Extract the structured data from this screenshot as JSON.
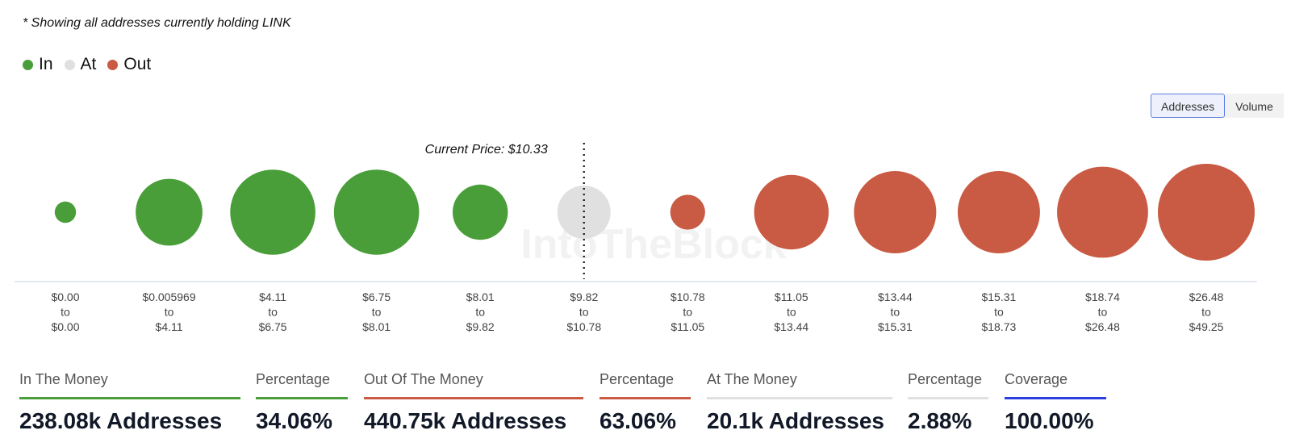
{
  "note": "* Showing all addresses currently holding LINK",
  "legend": [
    {
      "label": "In",
      "color": "#4a9e3a"
    },
    {
      "label": "At",
      "color": "#e0e0e0"
    },
    {
      "label": "Out",
      "color": "#c95a43"
    }
  ],
  "toggle": {
    "addresses_label": "Addresses",
    "volume_label": "Volume",
    "selected": "Addresses"
  },
  "watermark": "IntoTheBlock",
  "chart_data": {
    "type": "bubble",
    "measure": "Addresses",
    "current_price_label": "Current Price: $10.33",
    "current_price": 10.33,
    "bubbles": [
      {
        "from": "$0.00",
        "to": "$0.00",
        "status": "In",
        "relative_size": 0.22
      },
      {
        "from": "$0.005969",
        "to": "$4.11",
        "status": "In",
        "relative_size": 0.69
      },
      {
        "from": "$4.11",
        "to": "$6.75",
        "status": "In",
        "relative_size": 0.88
      },
      {
        "from": "$6.75",
        "to": "$8.01",
        "status": "In",
        "relative_size": 0.88
      },
      {
        "from": "$8.01",
        "to": "$9.82",
        "status": "In",
        "relative_size": 0.57
      },
      {
        "from": "$9.82",
        "to": "$10.78",
        "status": "At",
        "relative_size": 0.55
      },
      {
        "from": "$10.78",
        "to": "$11.05",
        "status": "Out",
        "relative_size": 0.36
      },
      {
        "from": "$11.05",
        "to": "$13.44",
        "status": "Out",
        "relative_size": 0.77
      },
      {
        "from": "$13.44",
        "to": "$15.31",
        "status": "Out",
        "relative_size": 0.85
      },
      {
        "from": "$15.31",
        "to": "$18.73",
        "status": "Out",
        "relative_size": 0.85
      },
      {
        "from": "$18.74",
        "to": "$26.48",
        "status": "Out",
        "relative_size": 0.94
      },
      {
        "from": "$26.48",
        "to": "$49.25",
        "status": "Out",
        "relative_size": 1.0
      }
    ],
    "range_word": "to"
  },
  "stats": [
    {
      "label": "In The Money",
      "value": "238.08k Addresses",
      "color": "#4a9e3a"
    },
    {
      "label": "Percentage",
      "value": "34.06%",
      "color": "#4a9e3a"
    },
    {
      "label": "Out Of The Money",
      "value": "440.75k Addresses",
      "color": "#c95a43"
    },
    {
      "label": "Percentage",
      "value": "63.06%",
      "color": "#c95a43"
    },
    {
      "label": "At The Money",
      "value": "20.1k Addresses",
      "color": "#e0e0e0"
    },
    {
      "label": "Percentage",
      "value": "2.88%",
      "color": "#e0e0e0"
    },
    {
      "label": "Coverage",
      "value": "100.00%",
      "color": "#2c3fe0"
    }
  ]
}
